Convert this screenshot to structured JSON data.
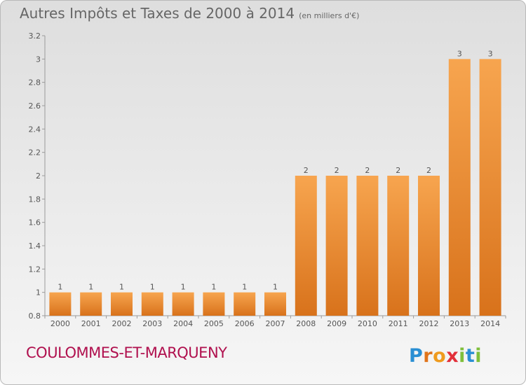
{
  "header": {
    "title": "Autres Impôts et Taxes de 2000 à 2014",
    "subtitle": "(en milliers d'€)"
  },
  "footer": {
    "commune": "COULOMMES-ET-MARQUENY",
    "logo": "Proxiti"
  },
  "colors": {
    "bar_light": "#f7a54f",
    "bar_dark": "#d8721b",
    "commune_text": "#b0104e"
  },
  "chart_data": {
    "type": "bar",
    "categories": [
      "2000",
      "2001",
      "2002",
      "2003",
      "2004",
      "2005",
      "2006",
      "2007",
      "2008",
      "2009",
      "2010",
      "2011",
      "2012",
      "2013",
      "2014"
    ],
    "values": [
      1,
      1,
      1,
      1,
      1,
      1,
      1,
      1,
      2,
      2,
      2,
      2,
      2,
      3,
      3
    ],
    "value_labels": [
      "1",
      "1",
      "1",
      "1",
      "1",
      "1",
      "1",
      "1",
      "2",
      "2",
      "2",
      "2",
      "2",
      "3",
      "3"
    ],
    "ylim": [
      0.8,
      3.2
    ],
    "yticks": [
      0.8,
      1,
      1.2,
      1.4,
      1.6,
      1.8,
      2,
      2.2,
      2.4,
      2.6,
      2.8,
      3,
      3.2
    ],
    "ytick_labels": [
      "0.8",
      "1",
      "1.2",
      "1.4",
      "1.6",
      "1.8",
      "2",
      "2.2",
      "2.4",
      "2.6",
      "2.8",
      "3",
      "3.2"
    ],
    "grid": false,
    "legend": "none"
  }
}
